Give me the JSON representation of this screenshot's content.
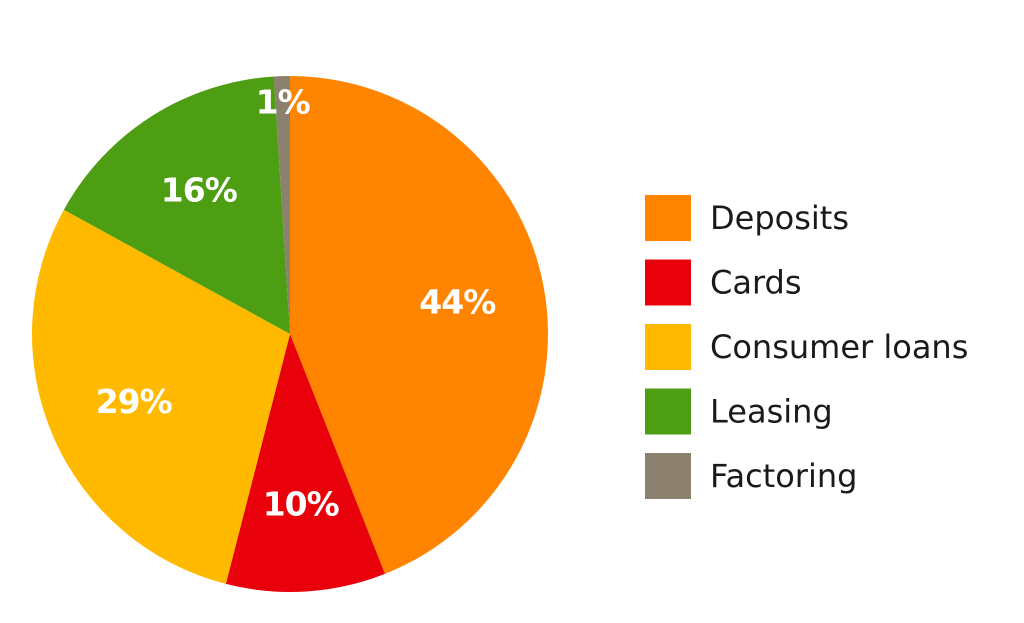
{
  "chart_data": {
    "type": "pie",
    "title": "",
    "slices": [
      {
        "label": "Deposits",
        "value": 44,
        "display": "44%",
        "color": "#FF8500"
      },
      {
        "label": "Cards",
        "value": 10,
        "display": "10%",
        "color": "#E8000A"
      },
      {
        "label": "Consumer loans",
        "value": 29,
        "display": "29%",
        "color": "#FFBA00"
      },
      {
        "label": "Leasing",
        "value": 16,
        "display": "16%",
        "color": "#4D9E12"
      },
      {
        "label": "Factoring",
        "value": 1,
        "display": "1%",
        "color": "#8C806E"
      }
    ],
    "start": "12 o'clock",
    "direction": "clockwise",
    "legend_position": "right"
  }
}
